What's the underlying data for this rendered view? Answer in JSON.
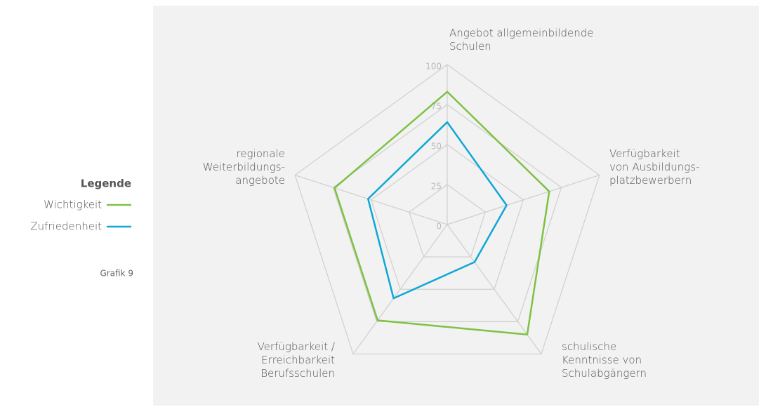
{
  "chart_data": {
    "type": "radar",
    "categories": [
      "Angebot allgemeinbildende\nSchulen",
      "Verfügbarkeit\nvon Ausbildungs-\nplatzbewerbern",
      "schulische\nKenntnisse von\nSchulabgängern",
      "Verfügbarkeit /\nErreichbarkeit\nBerufsschulen",
      "regionale\nWeiterbildungs-\nangebote"
    ],
    "series": [
      {
        "name": "Wichtigkeit",
        "color": "#7dc243",
        "values": [
          83,
          67,
          85,
          74,
          74
        ]
      },
      {
        "name": "Zufriedenheit",
        "color": "#0ea7d6",
        "values": [
          64,
          39,
          29,
          57,
          52
        ]
      }
    ],
    "ylim": [
      0,
      100
    ],
    "yticks": [
      0,
      25,
      50,
      75,
      100
    ],
    "grid": true,
    "legend_title": "Legende",
    "legend": "left",
    "note": "Grafik 9"
  }
}
